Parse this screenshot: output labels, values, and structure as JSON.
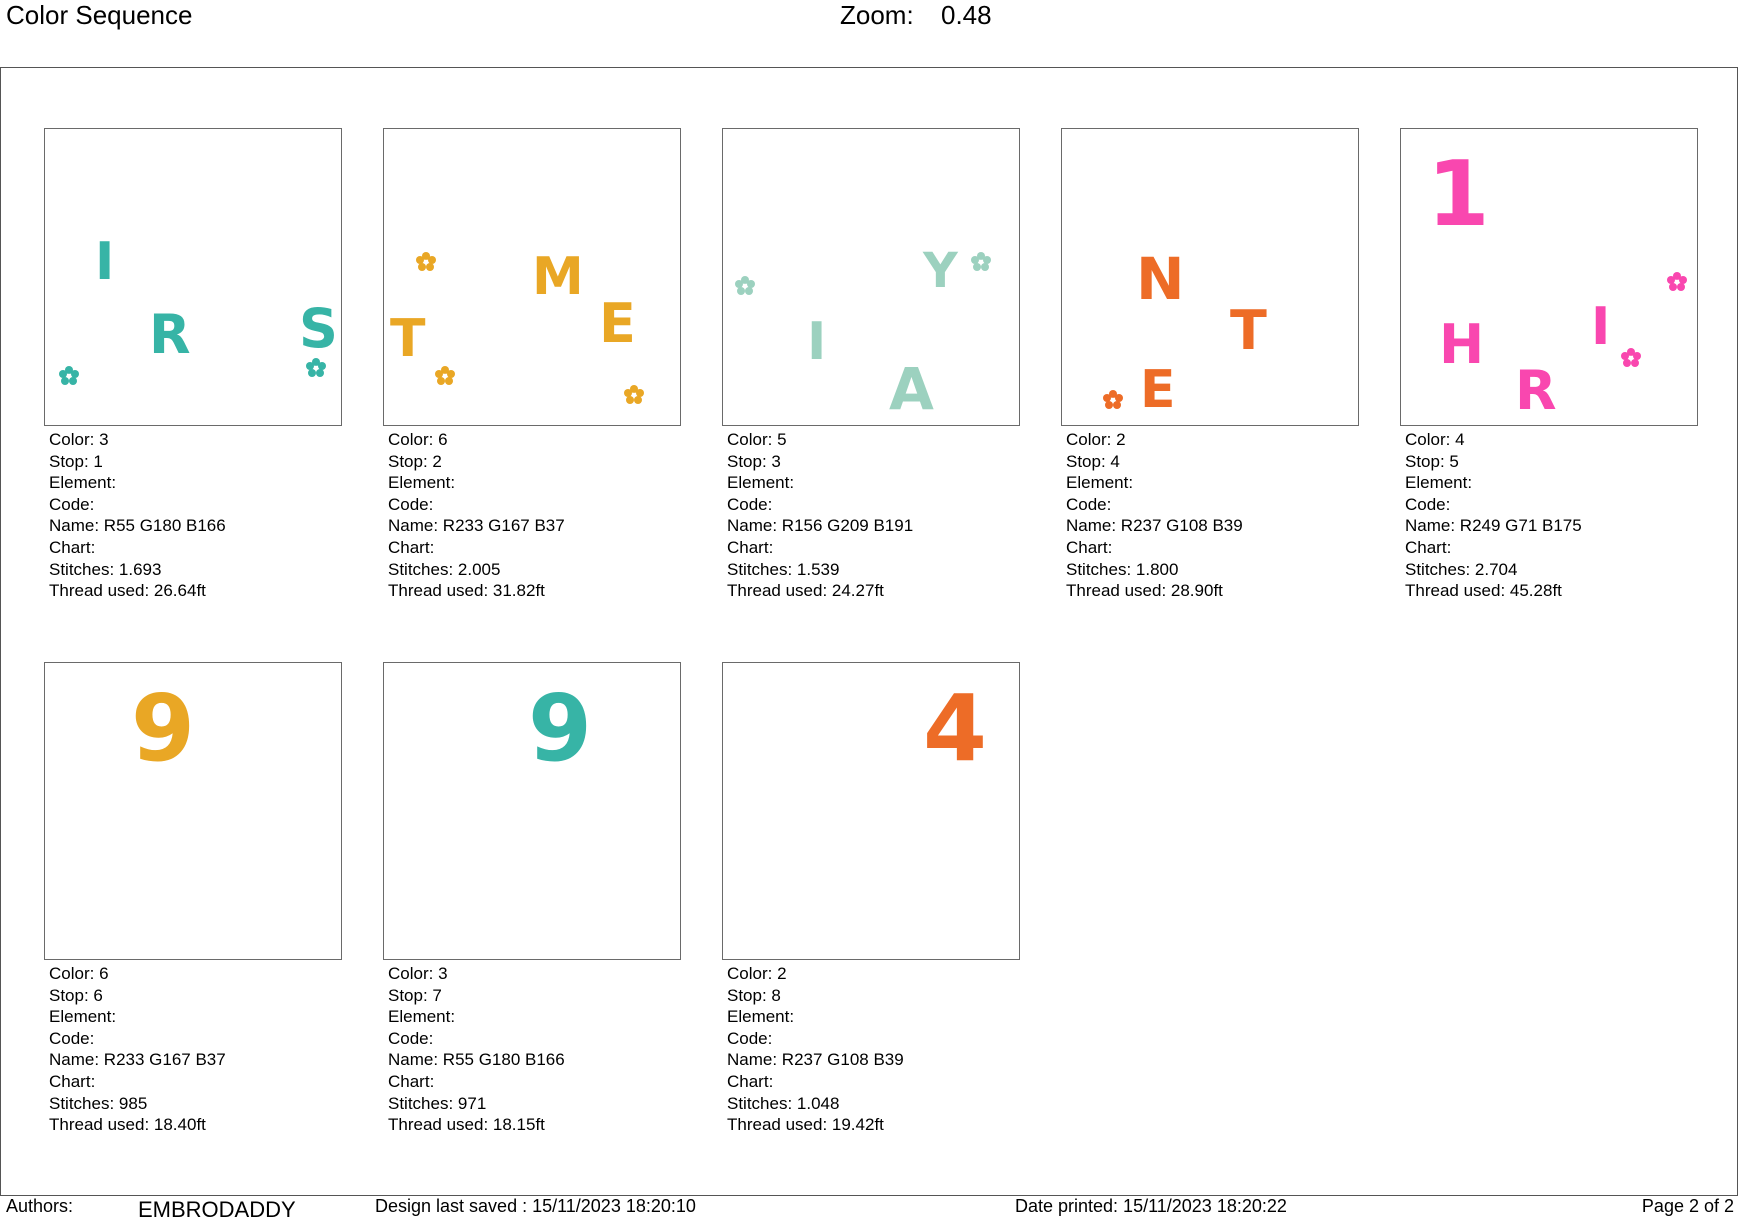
{
  "header": {
    "title": "Color Sequence",
    "zoom_label": "Zoom:",
    "zoom_value": "0.48"
  },
  "colors": {
    "teal": "#37B4A6",
    "gold": "#E9A725",
    "mint": "#9CD1BF",
    "orange": "#ED6C27",
    "pink": "#F947AF"
  },
  "stops": [
    {
      "color": "Color: 3",
      "stop": "Stop: 1",
      "element": "Element:",
      "code": "Code:",
      "name": "Name: R55 G180 B166",
      "chart": "Chart:",
      "stitches": "Stitches: 1.693",
      "thread": "Thread used: 26.64ft",
      "thumb_letters": [
        "I",
        "R",
        "S"
      ],
      "thumb_flowers": 2,
      "thumb_color": "#37B4A6"
    },
    {
      "color": "Color: 6",
      "stop": "Stop: 2",
      "element": "Element:",
      "code": "Code:",
      "name": "Name: R233 G167 B37",
      "chart": "Chart:",
      "stitches": "Stitches: 2.005",
      "thread": "Thread used: 31.82ft",
      "thumb_letters": [
        "M",
        "T",
        "E"
      ],
      "thumb_flowers": 3,
      "thumb_color": "#E9A725"
    },
    {
      "color": "Color: 5",
      "stop": "Stop: 3",
      "element": "Element:",
      "code": "Code:",
      "name": "Name: R156 G209 B191",
      "chart": "Chart:",
      "stitches": "Stitches: 1.539",
      "thread": "Thread used: 24.27ft",
      "thumb_letters": [
        "Y",
        "I",
        "A"
      ],
      "thumb_flowers": 2,
      "thumb_color": "#9CD1BF"
    },
    {
      "color": "Color: 2",
      "stop": "Stop: 4",
      "element": "Element:",
      "code": "Code:",
      "name": "Name: R237 G108 B39",
      "chart": "Chart:",
      "stitches": "Stitches: 1.800",
      "thread": "Thread used: 28.90ft",
      "thumb_letters": [
        "N",
        "T",
        "E"
      ],
      "thumb_flowers": 1,
      "thumb_color": "#ED6C27"
    },
    {
      "color": "Color: 4",
      "stop": "Stop: 5",
      "element": "Element:",
      "code": "Code:",
      "name": "Name: R249 G71 B175",
      "chart": "Chart:",
      "stitches": "Stitches: 2.704",
      "thread": "Thread used: 45.28ft",
      "thumb_letters": [
        "1",
        "H",
        "I",
        "R"
      ],
      "thumb_flowers": 2,
      "thumb_color": "#F947AF"
    },
    {
      "color": "Color: 6",
      "stop": "Stop: 6",
      "element": "Element:",
      "code": "Code:",
      "name": "Name: R233 G167 B37",
      "chart": "Chart:",
      "stitches": "Stitches: 985",
      "thread": "Thread used: 18.40ft",
      "thumb_letters": [
        "9"
      ],
      "thumb_flowers": 0,
      "thumb_color": "#E9A725"
    },
    {
      "color": "Color: 3",
      "stop": "Stop: 7",
      "element": "Element:",
      "code": "Code:",
      "name": "Name: R55 G180 B166",
      "chart": "Chart:",
      "stitches": "Stitches: 971",
      "thread": "Thread used: 18.15ft",
      "thumb_letters": [
        "9"
      ],
      "thumb_flowers": 0,
      "thumb_color": "#37B4A6"
    },
    {
      "color": "Color: 2",
      "stop": "Stop: 8",
      "element": "Element:",
      "code": "Code:",
      "name": "Name: R237 G108 B39",
      "chart": "Chart:",
      "stitches": "Stitches: 1.048",
      "thread": "Thread used: 19.42ft",
      "thumb_letters": [
        "4"
      ],
      "thumb_flowers": 0,
      "thumb_color": "#ED6C27"
    }
  ],
  "footer": {
    "authors_label": "Authors:",
    "authors": "EMBRODADDY",
    "design_saved": "Design last saved : 15/11/2023 18:20:10",
    "date_printed": "Date printed: 15/11/2023 18:20:22",
    "page": "Page 2 of 2"
  }
}
